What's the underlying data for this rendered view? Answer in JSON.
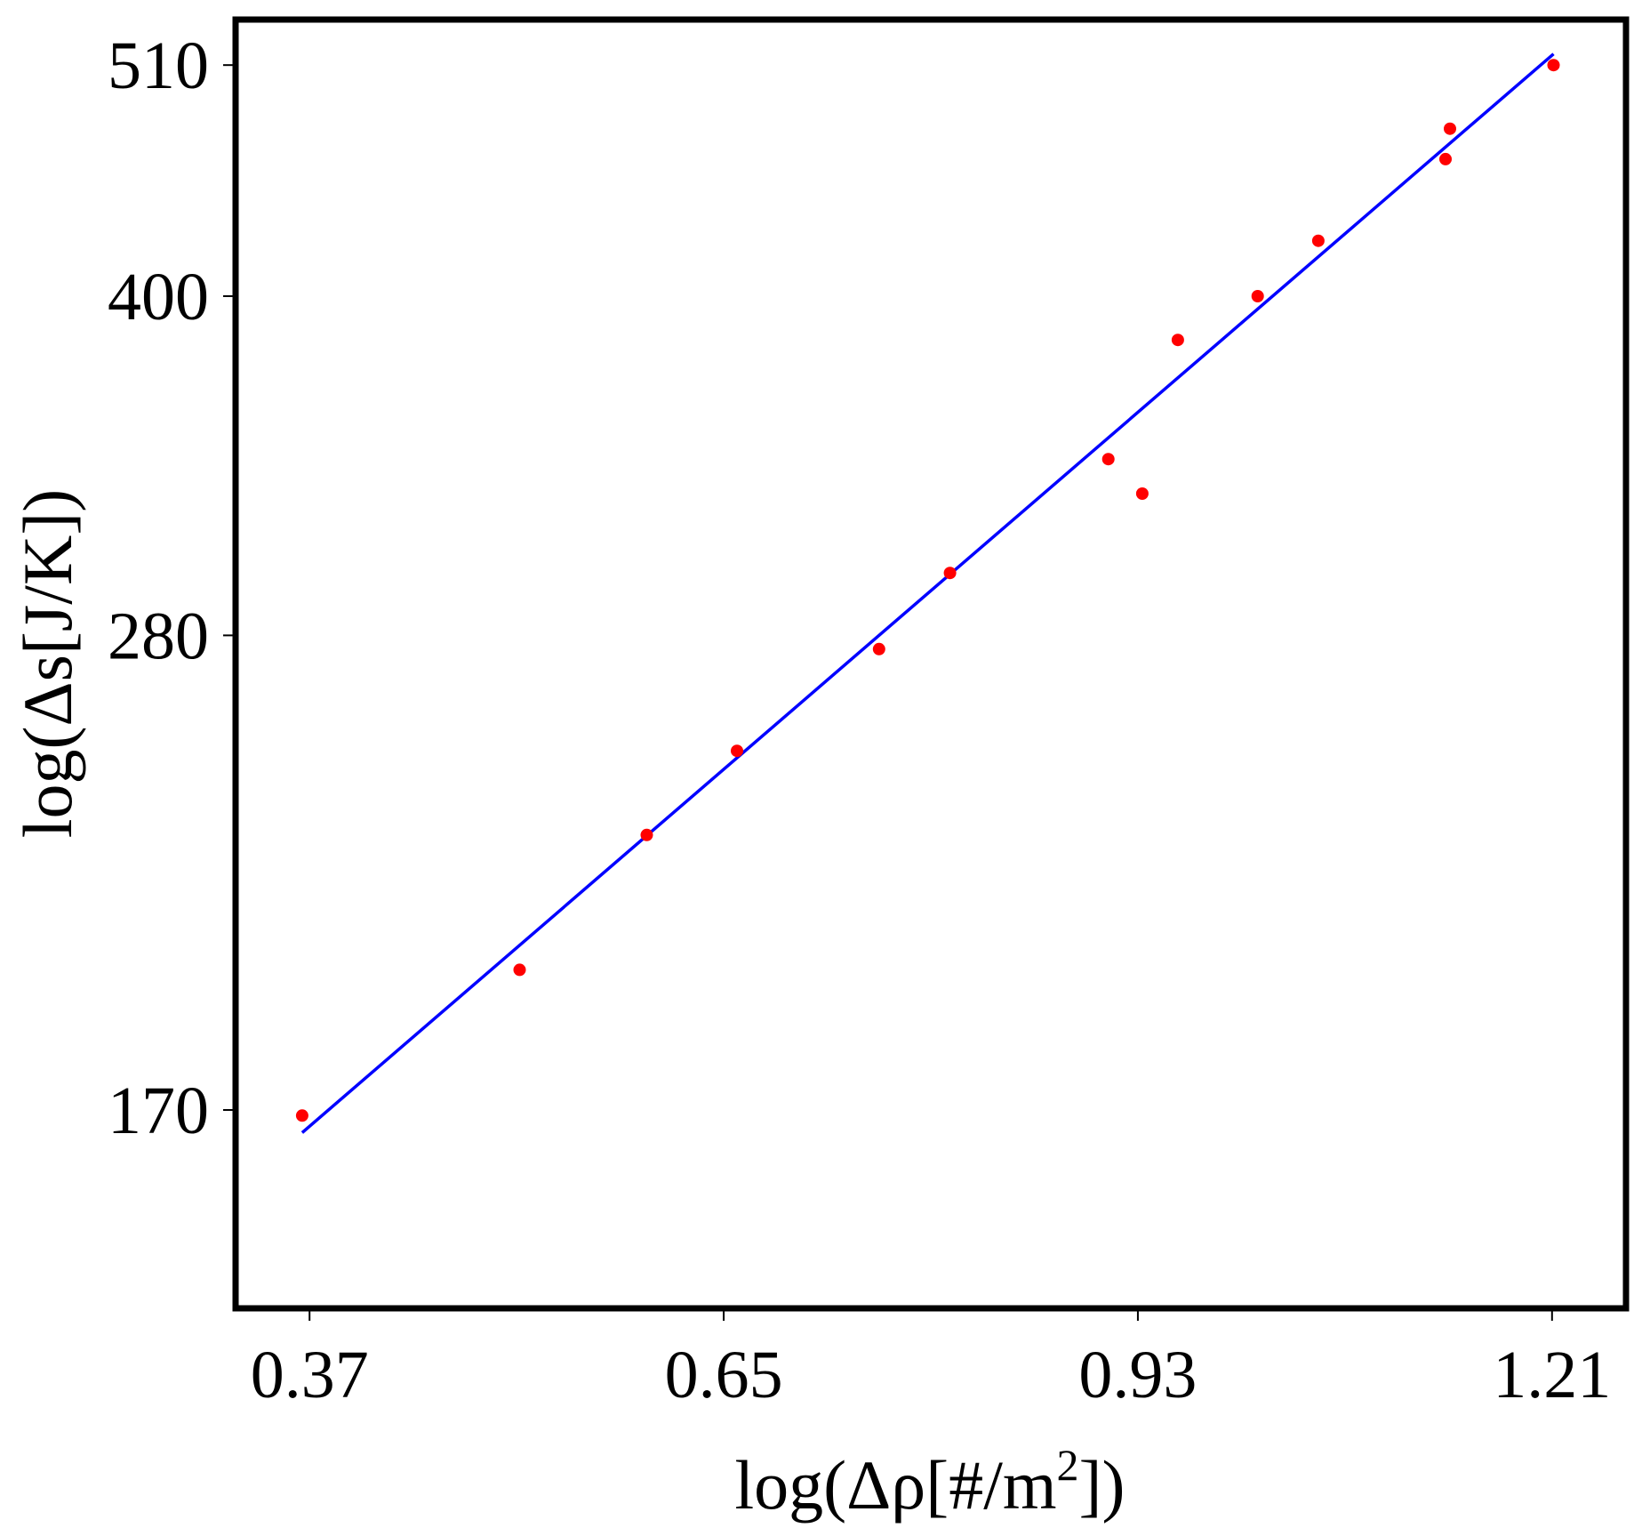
{
  "chart_data": {
    "type": "scatter",
    "title": "",
    "xlabel": "log(Δρ[#/m",
    "xlabel_superscript": "2",
    "xlabel_suffix": "])",
    "ylabel": "log(Δs[J/K])",
    "xlim": [
      0.32,
      1.26
    ],
    "ylim": [
      138,
      535
    ],
    "y_scale": "log",
    "x_ticks": [
      0.37,
      0.65,
      0.93,
      1.21
    ],
    "x_tick_labels": [
      "0.37",
      "0.65",
      "0.93",
      "1.21"
    ],
    "y_ticks": [
      170,
      280,
      400,
      510
    ],
    "y_tick_labels": [
      "170",
      "280",
      "400",
      "510"
    ],
    "grid": false,
    "legend": "none",
    "series": [
      {
        "kind": "points",
        "color": "#ff0000",
        "x": [
          0.365,
          0.512,
          0.598,
          0.659,
          0.755,
          0.803,
          0.91,
          0.933,
          0.957,
          1.011,
          1.052,
          1.138,
          1.141,
          1.211
        ],
        "y": [
          169,
          197,
          227,
          248,
          276,
          299,
          337,
          325,
          382,
          400,
          424,
          462,
          477,
          510
        ]
      },
      {
        "kind": "fit-line",
        "color": "#0000ff",
        "x": [
          0.365,
          1.211
        ],
        "y": [
          166,
          516
        ]
      }
    ]
  }
}
